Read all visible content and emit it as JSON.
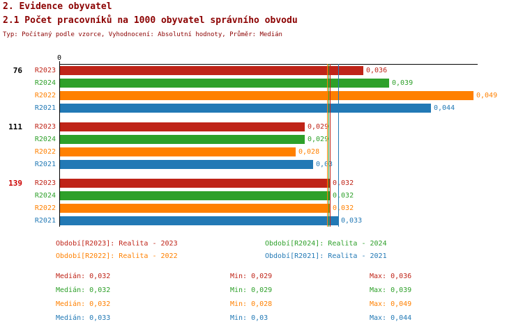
{
  "header": {
    "title": "2. Evidence obyvatel",
    "subtitle": "2.1 Počet pracovníků na 1000 obyvatel správního obvodu",
    "meta": "Typ: Počítaný podle vzorce, Vyhodnocení: Absolutní hodnoty, Průměr: Medián"
  },
  "colors": {
    "R2023": "#bf2418",
    "R2024": "#2ea02a",
    "R2022": "#ff8000",
    "R2021": "#2279b5",
    "title": "#8b0000",
    "axis": "#000000",
    "group_label": "#000000",
    "group_label_highlight": "#cc0000"
  },
  "chart_data": {
    "type": "bar",
    "orientation": "horizontal",
    "title": "2.1 Počet pracovníků na 1000 obyvatel správního obvodu",
    "xlabel": "",
    "ylabel": "",
    "xmin": 0,
    "xmax": 0.0495,
    "axis_origin_label": "0",
    "grid": false,
    "legend_position": "bottom",
    "series": [
      "R2023",
      "R2024",
      "R2022",
      "R2021"
    ],
    "groups": [
      {
        "label": "76",
        "highlight": false,
        "bars": [
          {
            "series": "R2023",
            "value": 0.036,
            "display": "0,036"
          },
          {
            "series": "R2024",
            "value": 0.039,
            "display": "0,039"
          },
          {
            "series": "R2022",
            "value": 0.049,
            "display": "0,049"
          },
          {
            "series": "R2021",
            "value": 0.044,
            "display": "0,044"
          }
        ]
      },
      {
        "label": "111",
        "highlight": false,
        "bars": [
          {
            "series": "R2023",
            "value": 0.029,
            "display": "0,029"
          },
          {
            "series": "R2024",
            "value": 0.029,
            "display": "0,029"
          },
          {
            "series": "R2022",
            "value": 0.028,
            "display": "0,028"
          },
          {
            "series": "R2021",
            "value": 0.03,
            "display": "0,03"
          }
        ]
      },
      {
        "label": "139",
        "highlight": true,
        "bars": [
          {
            "series": "R2023",
            "value": 0.032,
            "display": "0,032"
          },
          {
            "series": "R2024",
            "value": 0.032,
            "display": "0,032"
          },
          {
            "series": "R2022",
            "value": 0.032,
            "display": "0,032"
          },
          {
            "series": "R2021",
            "value": 0.033,
            "display": "0,033"
          }
        ]
      }
    ],
    "median_lines": [
      {
        "series": "R2023",
        "value": 0.032
      },
      {
        "series": "R2024",
        "value": 0.032
      },
      {
        "series": "R2022",
        "value": 0.032
      },
      {
        "series": "R2021",
        "value": 0.033
      }
    ]
  },
  "legend": {
    "items": [
      {
        "series": "R2023",
        "text": "Období[R2023]: Realita - 2023"
      },
      {
        "series": "R2024",
        "text": "Období[R2024]: Realita - 2024"
      },
      {
        "series": "R2022",
        "text": "Období[R2022]: Realita - 2022"
      },
      {
        "series": "R2021",
        "text": "Období[R2021]: Realita - 2021"
      }
    ]
  },
  "stats": {
    "rows": [
      {
        "series": "R2023",
        "median": "Medián: 0,032",
        "min": "Min: 0,029",
        "max": "Max: 0,036"
      },
      {
        "series": "R2024",
        "median": "Medián: 0,032",
        "min": "Min: 0,029",
        "max": "Max: 0,039"
      },
      {
        "series": "R2022",
        "median": "Medián: 0,032",
        "min": "Min: 0,028",
        "max": "Max: 0,049"
      },
      {
        "series": "R2021",
        "median": "Medián: 0,033",
        "min": "Min: 0,03",
        "max": "Max: 0,044"
      }
    ]
  }
}
